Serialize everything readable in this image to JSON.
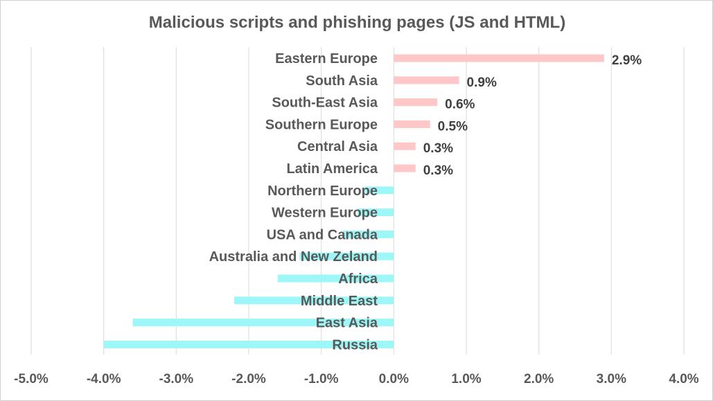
{
  "chart_data": {
    "type": "bar",
    "orientation": "horizontal",
    "title": "Malicious scripts and phishing pages (JS and HTML)",
    "categories": [
      "Eastern Europe",
      "South Asia",
      "South-East Asia",
      "Southern Europe",
      "Central Asia",
      "Latin America",
      "Northern Europe",
      "Western Europe",
      "USA and Canada",
      "Australia and New Zeland",
      "Africa",
      "Middle East",
      "East Asia",
      "Russia"
    ],
    "values": [
      2.9,
      0.9,
      0.6,
      0.5,
      0.3,
      0.3,
      -0.4,
      -0.5,
      -0.7,
      -1.3,
      -1.6,
      -2.2,
      -3.6,
      -4.0
    ],
    "data_labels": [
      "2.9%",
      "0.9%",
      "0.6%",
      "0.5%",
      "0.3%",
      "0.3%",
      "",
      "",
      "",
      "",
      "",
      "",
      "",
      ""
    ],
    "xlim": [
      -5.0,
      4.0
    ],
    "xticks": [
      -5,
      -4,
      -3,
      -2,
      -1,
      0,
      1,
      2,
      3,
      4
    ],
    "xtick_labels": [
      "-5.0%",
      "-4.0%",
      "-3.0%",
      "-2.0%",
      "-1.0%",
      "0.0%",
      "1.0%",
      "2.0%",
      "3.0%",
      "4.0%"
    ],
    "grid": true,
    "colors": {
      "positive": "#ffc7c7",
      "negative": "#9ef7f7"
    }
  }
}
